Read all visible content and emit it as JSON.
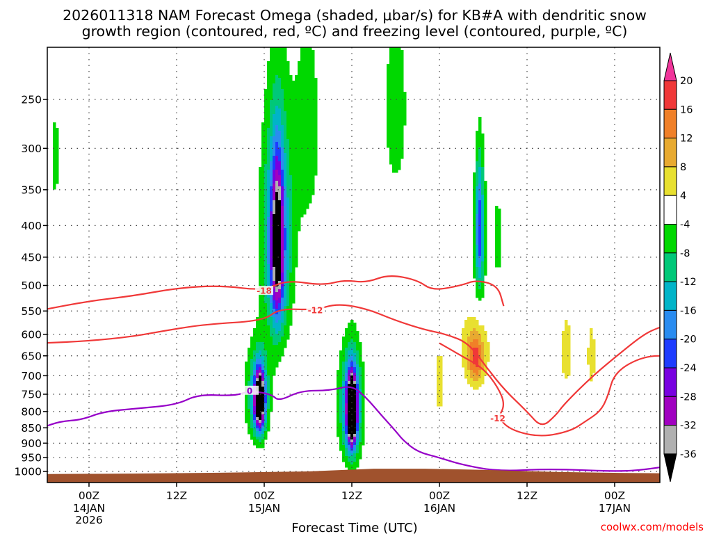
{
  "title_line1": "2026011318 NAM Forecast Omega (shaded, μbar/s) for KB#A with dendritic snow",
  "title_line2": "growth region (contoured, red, ºC) and freezing level (contoured, purple, ºC)",
  "credit": "coolwx.com/models",
  "colors": {
    "dendritic_contour": "#f03838",
    "freezing_contour": "#9600c8",
    "terrain": "#a0522d",
    "grid": "#444444"
  },
  "chart_data": {
    "type": "heatmap",
    "title": "2026011318 NAM Forecast Omega (shaded, μbar/s) for KB#A with dendritic snow growth region (contoured, red, ºC) and freezing level (contoured, purple, ºC)",
    "xlabel": "Forecast Time (UTC)",
    "ylabel": "",
    "y_scale": "log-pressure",
    "ylim_hPa": [
      1000,
      200
    ],
    "grid": true,
    "legend": "right colorbar",
    "x_ticks": [
      {
        "label": "00Z",
        "sub": [
          "14JAN",
          "2026"
        ],
        "hours": 6
      },
      {
        "label": "12Z",
        "sub": [],
        "hours": 18
      },
      {
        "label": "00Z",
        "sub": [
          "15JAN"
        ],
        "hours": 30
      },
      {
        "label": "12Z",
        "sub": [],
        "hours": 42
      },
      {
        "label": "00Z",
        "sub": [
          "16JAN"
        ],
        "hours": 54
      },
      {
        "label": "12Z",
        "sub": [],
        "hours": 66
      },
      {
        "label": "00Z",
        "sub": [
          "17JAN"
        ],
        "hours": 78
      }
    ],
    "y_ticks": [
      250,
      300,
      350,
      400,
      450,
      500,
      550,
      600,
      650,
      700,
      750,
      800,
      850,
      900,
      950,
      1000
    ],
    "colorbar": {
      "labels": [
        "20",
        "16",
        "12",
        "8",
        "4",
        "-4",
        "-8",
        "-12",
        "-16",
        "-20",
        "-24",
        "-28",
        "-32",
        "-36"
      ],
      "levels": [
        24,
        20,
        16,
        12,
        8,
        4,
        -4,
        -8,
        -12,
        -16,
        -20,
        -24,
        -28,
        -32,
        -36,
        -40
      ],
      "colors": [
        "#f0349a",
        "#f03838",
        "#f08028",
        "#e8aa30",
        "#e8e030",
        "#ffffff",
        "#00d800",
        "#00c878",
        "#00b4c8",
        "#2a8cf0",
        "#1e3cff",
        "#7800e0",
        "#a000c0",
        "#b0b0b0",
        "#000000"
      ]
    },
    "omega_features": [
      {
        "t": 1.4,
        "p": 310,
        "dt": 0.5,
        "sp": 70,
        "v": -6
      },
      {
        "t": 29.0,
        "p": 750,
        "dt": 2.0,
        "sp": 140,
        "v": -9
      },
      {
        "t": 29.3,
        "p": 760,
        "dt": 0.9,
        "sp": 100,
        "v": -22
      },
      {
        "t": 29.4,
        "p": 770,
        "dt": 0.6,
        "sp": 70,
        "v": -31
      },
      {
        "t": 31.7,
        "p": 420,
        "dt": 2.6,
        "sp": 200,
        "v": -8
      },
      {
        "t": 31.8,
        "p": 420,
        "dt": 1.6,
        "sp": 160,
        "v": -14
      },
      {
        "t": 31.8,
        "p": 430,
        "dt": 0.8,
        "sp": 120,
        "v": -26
      },
      {
        "t": 36.0,
        "p": 280,
        "dt": 2.0,
        "sp": 130,
        "v": -6
      },
      {
        "t": 41.8,
        "p": 780,
        "dt": 2.0,
        "sp": 180,
        "v": -10
      },
      {
        "t": 42.0,
        "p": 790,
        "dt": 1.0,
        "sp": 130,
        "v": -24
      },
      {
        "t": 42.0,
        "p": 800,
        "dt": 0.55,
        "sp": 90,
        "v": -40
      },
      {
        "t": 48.0,
        "p": 260,
        "dt": 2.0,
        "sp": 110,
        "v": -6
      },
      {
        "t": 54.0,
        "p": 720,
        "dt": 0.6,
        "sp": 120,
        "v": 6
      },
      {
        "t": 58.8,
        "p": 630,
        "dt": 2.2,
        "sp": 90,
        "v": 8
      },
      {
        "t": 59.0,
        "p": 660,
        "dt": 1.0,
        "sp": 60,
        "v": 11
      },
      {
        "t": 59.5,
        "p": 420,
        "dt": 1.0,
        "sp": 130,
        "v": -9
      },
      {
        "t": 59.5,
        "p": 400,
        "dt": 0.5,
        "sp": 90,
        "v": -15
      },
      {
        "t": 62.0,
        "p": 420,
        "dt": 0.5,
        "sp": 90,
        "v": -6
      },
      {
        "t": 71.4,
        "p": 640,
        "dt": 1.0,
        "sp": 110,
        "v": 6
      },
      {
        "t": 74.8,
        "p": 650,
        "dt": 0.7,
        "sp": 100,
        "v": 6
      }
    ],
    "dendritic_lines": [
      {
        "label": "-18",
        "points": [
          [
            -0.5,
            548
          ],
          [
            6,
            530
          ],
          [
            12,
            520
          ],
          [
            18,
            505
          ],
          [
            24,
            500
          ],
          [
            30,
            510
          ],
          [
            33,
            490
          ],
          [
            38,
            500
          ],
          [
            41,
            490
          ],
          [
            44,
            495
          ],
          [
            47,
            480
          ],
          [
            51,
            490
          ],
          [
            53,
            510
          ],
          [
            57,
            500
          ],
          [
            59,
            490
          ],
          [
            62,
            500
          ],
          [
            62.8,
            540
          ]
        ]
      },
      {
        "label": "-12",
        "points": [
          [
            -0.5,
            620
          ],
          [
            6,
            615
          ],
          [
            12,
            605
          ],
          [
            17,
            590
          ],
          [
            22,
            578
          ],
          [
            30,
            570
          ],
          [
            32,
            545
          ],
          [
            37,
            548
          ],
          [
            40,
            535
          ],
          [
            44,
            545
          ],
          [
            48,
            570
          ],
          [
            52,
            590
          ],
          [
            55,
            600
          ],
          [
            58,
            620
          ],
          [
            60.5,
            680
          ],
          [
            63,
            740
          ],
          [
            66,
            800
          ],
          [
            68,
            850
          ],
          [
            70,
            810
          ],
          [
            71,
            780
          ],
          [
            75,
            700
          ],
          [
            79,
            640
          ],
          [
            82,
            600
          ],
          [
            84,
            585
          ],
          [
            88,
            565
          ],
          [
            91.5,
            548
          ]
        ]
      },
      {
        "label": "-12",
        "points": [
          [
            54,
            620
          ],
          [
            57,
            650
          ],
          [
            60,
            680
          ],
          [
            62,
            730
          ],
          [
            63,
            780
          ],
          [
            62,
            820
          ],
          [
            64,
            860
          ],
          [
            68,
            880
          ],
          [
            72,
            860
          ],
          [
            74,
            830
          ],
          [
            76,
            800
          ],
          [
            77,
            760
          ],
          [
            78,
            690
          ],
          [
            82,
            650
          ],
          [
            86,
            650
          ],
          [
            89,
            660
          ],
          [
            91.5,
            680
          ]
        ]
      }
    ],
    "freezing_line": {
      "label": "0",
      "points": [
        [
          -0.5,
          850
        ],
        [
          2,
          830
        ],
        [
          5,
          825
        ],
        [
          8,
          800
        ],
        [
          13,
          790
        ],
        [
          18,
          780
        ],
        [
          21,
          750
        ],
        [
          26,
          755
        ],
        [
          28,
          740
        ],
        [
          31,
          750
        ],
        [
          32,
          770
        ],
        [
          35,
          740
        ],
        [
          39,
          740
        ],
        [
          42,
          725
        ],
        [
          44,
          760
        ],
        [
          46,
          810
        ],
        [
          48,
          860
        ],
        [
          49,
          890
        ],
        [
          51,
          930
        ],
        [
          54,
          950
        ],
        [
          57,
          975
        ],
        [
          62,
          1000
        ],
        [
          69,
          990
        ],
        [
          78,
          1000
        ],
        [
          82,
          995
        ],
        [
          90,
          960
        ],
        [
          91.5,
          950
        ]
      ]
    },
    "terrain_hPa": [
      [
        -0.5,
        1010
      ],
      [
        12,
        1008
      ],
      [
        24,
        1005
      ],
      [
        36,
        1000
      ],
      [
        45,
        990
      ],
      [
        52,
        990
      ],
      [
        60,
        994
      ],
      [
        70,
        1002
      ],
      [
        80,
        1006
      ],
      [
        91.5,
        1008
      ]
    ]
  }
}
